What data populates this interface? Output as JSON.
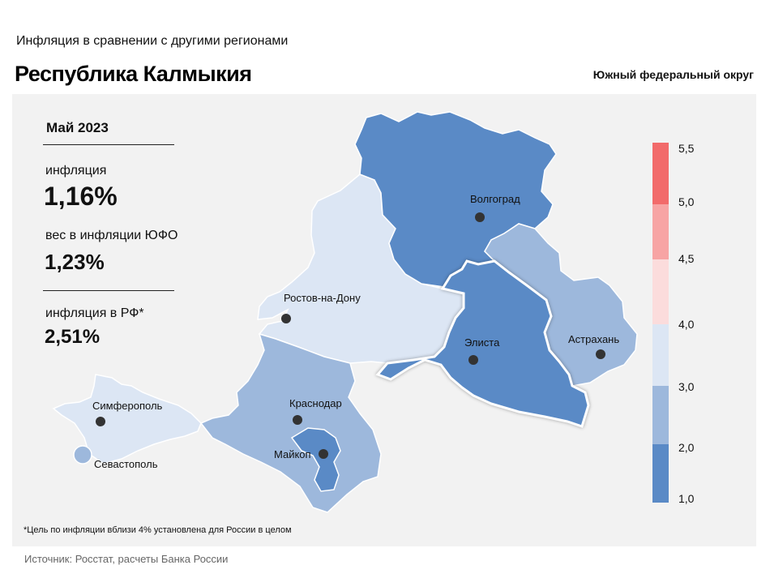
{
  "header": {
    "subtitle": "Инфляция  в сравнении  с другими  регионами",
    "title": "Республика Калмыкия",
    "district": "Южный федеральный округ"
  },
  "stats": {
    "period": "Май 2023",
    "inflation_label": "инфляция",
    "inflation_value": "1,16%",
    "weight_label": "вес в инфляции  ЮФО",
    "weight_value": "1,23%",
    "rf_label": "инфляция  в РФ*",
    "rf_value": "2,51%"
  },
  "cities": {
    "volgograd": "Волгоград",
    "rostov": "Ростов-на-Дону",
    "elista": "Элиста",
    "astrakhan": "Астрахань",
    "simferopol": "Симферополь",
    "sevastopol": "Севастополь",
    "krasnodar": "Краснодар",
    "maykop": "Майкоп"
  },
  "legend": {
    "ticks": [
      "5,5",
      "5,0",
      "4,5",
      "4,0",
      "3,0",
      "2,0",
      "1,0"
    ],
    "colors": {
      "5.0-5.5": "#f26b6b",
      "4.5-5.0": "#f7a4a4",
      "4.0-4.5": "#fbdcdc",
      "3.0-4.0": "#dce6f4",
      "2.0-3.0": "#9db8dc",
      "1.0-2.0": "#5a8ac6"
    }
  },
  "regions": {
    "volgograd_color": "#5a8ac6",
    "rostov_color": "#dce6f4",
    "kalmykia_color": "#5a8ac6",
    "astrakhan_color": "#9db8dc",
    "krasnodar_color": "#9db8dc",
    "adygea_color": "#5a8ac6",
    "crimea_color": "#dce6f4",
    "sevastopol_color": "#9db8dc"
  },
  "footnote": "*Цель по инфляции вблизи 4% установлена для России в целом",
  "source": "Источник: Росстат, расчеты Банка России"
}
